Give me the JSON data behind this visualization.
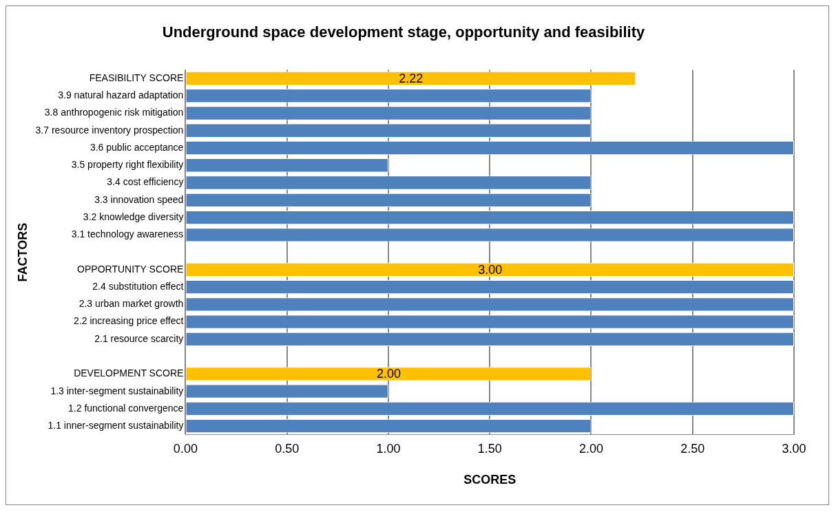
{
  "chart_data": {
    "type": "bar",
    "orientation": "horizontal",
    "title": "Underground space development stage, opportunity and feasibility",
    "xlabel": "SCORES",
    "ylabel": "FACTORS",
    "categories": [
      "FEASIBILITY SCORE",
      "3.9 natural hazard adaptation",
      "3.8 anthropogenic risk mitigation",
      "3.7 resource inventory prospection",
      "3.6 public acceptance",
      "3.5 property right flexibility",
      "3.4 cost efficiency",
      "3.3 innovation speed",
      "3.2 knowledge diversity",
      "3.1 technology awareness",
      null,
      "OPPORTUNITY SCORE",
      "2.4 substitution effect",
      "2.3 urban market growth",
      "2.2 increasing price effect",
      "2.1 resource scarcity",
      null,
      "DEVELOPMENT SCORE",
      "1.3 inter-segment sustainability",
      "1.2 functional convergence",
      "1.1 inner-segment sustainability"
    ],
    "values": [
      2.22,
      2,
      2,
      2,
      3,
      1,
      2,
      2,
      3,
      3,
      null,
      3.0,
      3,
      3,
      3,
      3,
      null,
      2.0,
      1,
      3,
      2
    ],
    "colors": [
      "#ffc000",
      "#4f81bd",
      "#4f81bd",
      "#4f81bd",
      "#4f81bd",
      "#4f81bd",
      "#4f81bd",
      "#4f81bd",
      "#4f81bd",
      "#4f81bd",
      "#4f81bd",
      "#ffc000",
      "#4f81bd",
      "#4f81bd",
      "#4f81bd",
      "#4f81bd",
      "#4f81bd",
      "#ffc000",
      "#4f81bd",
      "#4f81bd",
      "#4f81bd"
    ],
    "value_labels": [
      "2.22",
      null,
      null,
      null,
      null,
      null,
      null,
      null,
      null,
      null,
      null,
      "3.00",
      null,
      null,
      null,
      null,
      null,
      "2.00",
      null,
      null,
      null
    ],
    "xlim": [
      0,
      3
    ],
    "xticks": [
      {
        "value": 0,
        "label": "0.00"
      },
      {
        "value": 0.5,
        "label": "0.50"
      },
      {
        "value": 1,
        "label": "1.00"
      },
      {
        "value": 1.5,
        "label": "1.50"
      },
      {
        "value": 2,
        "label": "2.00"
      },
      {
        "value": 2.5,
        "label": "2.50"
      },
      {
        "value": 3,
        "label": "3.00"
      }
    ],
    "grid": "x",
    "legend": false
  }
}
